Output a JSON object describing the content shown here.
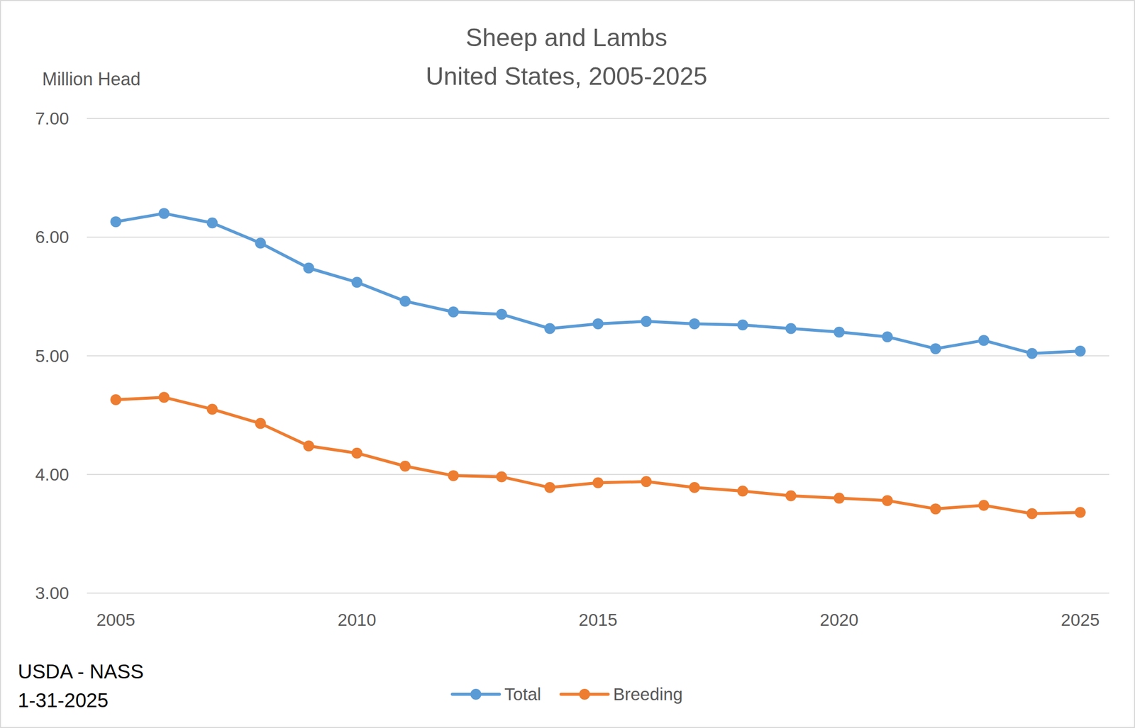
{
  "chart_data": {
    "type": "line",
    "title": "Sheep and Lambs",
    "subtitle": "United States, 2005-2025",
    "y_label": "Million Head",
    "annotations": [
      "USDA - NASS",
      "1-31-2025"
    ],
    "x": [
      2005,
      2006,
      2007,
      2008,
      2009,
      2010,
      2011,
      2012,
      2013,
      2014,
      2015,
      2016,
      2017,
      2018,
      2019,
      2020,
      2021,
      2022,
      2023,
      2024,
      2025
    ],
    "series": [
      {
        "name": "Total",
        "color": "#5b9bd5",
        "marker": "circle",
        "values": [
          6.13,
          6.2,
          6.12,
          5.95,
          5.74,
          5.62,
          5.46,
          5.37,
          5.35,
          5.23,
          5.27,
          5.29,
          5.27,
          5.26,
          5.23,
          5.2,
          5.16,
          5.06,
          5.13,
          5.02,
          5.04
        ]
      },
      {
        "name": "Breeding",
        "color": "#ed7d31",
        "marker": "circle",
        "values": [
          4.63,
          4.65,
          4.55,
          4.43,
          4.24,
          4.18,
          4.07,
          3.99,
          3.98,
          3.89,
          3.93,
          3.94,
          3.89,
          3.86,
          3.82,
          3.8,
          3.78,
          3.71,
          3.74,
          3.67,
          3.68
        ]
      }
    ],
    "xlim": [
      2004.4,
      2025.6
    ],
    "xticks": [
      2005,
      2010,
      2015,
      2020,
      2025
    ],
    "ylim": [
      3,
      7
    ],
    "yticks": [
      {
        "value": 3,
        "label": "3.00"
      },
      {
        "value": 4,
        "label": "4.00"
      },
      {
        "value": 5,
        "label": "5.00"
      },
      {
        "value": 6,
        "label": "6.00"
      },
      {
        "value": 7,
        "label": "7.00"
      }
    ],
    "grid": true,
    "legend": "bottom"
  }
}
